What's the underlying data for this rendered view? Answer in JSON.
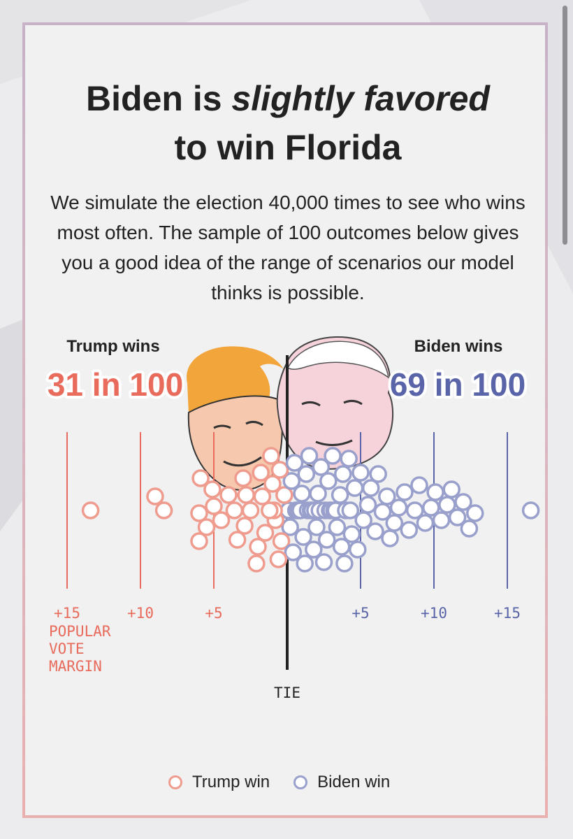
{
  "colors": {
    "trump": "#e86b5b",
    "trump_dot": "#ef9c8f",
    "biden": "#5a64a8",
    "biden_dot": "#9aa0cc",
    "ink": "#222222"
  },
  "chart_data": {
    "type": "scatter",
    "title_parts": [
      "Biden is ",
      "slightly favored",
      " to win Florida"
    ],
    "subtitle": "We simulate the election 40,000 times to see who wins most often. The sample of 100 outcomes below gives you a good idea of the range of scenarios our model thinks is possible.",
    "left_label": "Trump wins",
    "left_count": "31 in 100",
    "right_label": "Biden wins",
    "right_count": "69 in 100",
    "axis_label": [
      "POPULAR",
      "VOTE",
      "MARGIN"
    ],
    "tie_label": "TIE",
    "xlim": [
      -19,
      19
    ],
    "ticks": [
      {
        "value": -15,
        "label": "+15",
        "side": "trump"
      },
      {
        "value": -10,
        "label": "+10",
        "side": "trump"
      },
      {
        "value": -5,
        "label": "+5",
        "side": "trump"
      },
      {
        "value": 5,
        "label": "+5",
        "side": "biden"
      },
      {
        "value": 10,
        "label": "+10",
        "side": "biden"
      },
      {
        "value": 15,
        "label": "+15",
        "side": "biden"
      }
    ],
    "series": [
      {
        "name": "Trump win",
        "count": 31,
        "values": [
          -13.4,
          -9.0,
          -8.4,
          -6.0,
          -6.0,
          -5.9,
          -5.5,
          -5.1,
          -5.0,
          -4.5,
          -4.0,
          -3.6,
          -3.4,
          -3.0,
          -2.9,
          -2.8,
          -2.5,
          -2.1,
          -2.0,
          -1.8,
          -1.7,
          -1.5,
          -1.2,
          -1.1,
          -1.0,
          -0.9,
          -0.8,
          -0.6,
          -0.5,
          -0.4,
          -0.2
        ]
      },
      {
        "name": "Biden win",
        "count": 69,
        "values": [
          0.1,
          0.2,
          0.3,
          0.4,
          0.5,
          0.6,
          0.7,
          0.8,
          0.9,
          1.0,
          1.1,
          1.2,
          1.3,
          1.4,
          1.5,
          1.6,
          1.7,
          1.8,
          1.9,
          2.0,
          2.1,
          2.2,
          2.3,
          2.5,
          2.6,
          2.7,
          2.8,
          2.9,
          3.0,
          3.1,
          3.2,
          3.3,
          3.4,
          3.6,
          3.7,
          3.8,
          3.9,
          4.0,
          4.2,
          4.3,
          4.4,
          4.6,
          4.8,
          5.0,
          5.2,
          5.5,
          5.7,
          6.0,
          6.2,
          6.5,
          6.8,
          7.0,
          7.3,
          7.6,
          8.0,
          8.3,
          8.7,
          9.0,
          9.4,
          9.8,
          10.1,
          10.5,
          10.9,
          11.2,
          11.6,
          12.0,
          12.4,
          12.8,
          16.6
        ]
      }
    ],
    "legend": [
      "Trump win",
      "Biden win"
    ]
  }
}
